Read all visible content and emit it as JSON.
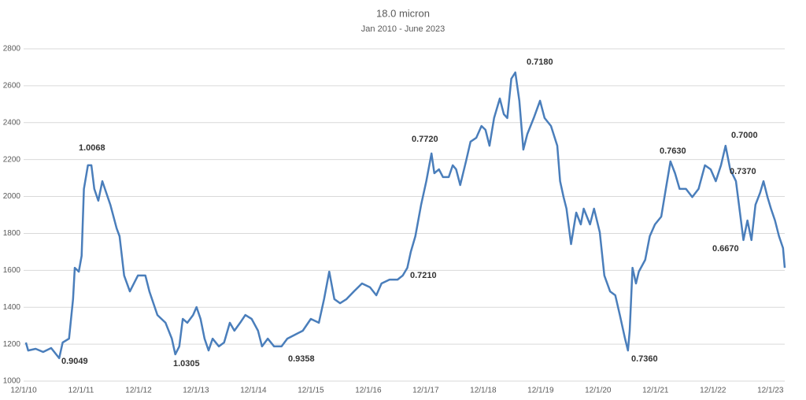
{
  "chart_data": {
    "type": "line",
    "title": "18.0 micron",
    "subtitle": "Jan 2010 - June 2023",
    "xlim": [
      0,
      13.25
    ],
    "xticks": [
      {
        "value": 0,
        "label": "12/1/10"
      },
      {
        "value": 1,
        "label": "12/1/11"
      },
      {
        "value": 2,
        "label": "12/1/12"
      },
      {
        "value": 3,
        "label": "12/1/13"
      },
      {
        "value": 4,
        "label": "12/1/14"
      },
      {
        "value": 5,
        "label": "12/1/15"
      },
      {
        "value": 6,
        "label": "12/1/16"
      },
      {
        "value": 7,
        "label": "12/1/17"
      },
      {
        "value": 8,
        "label": "12/1/18"
      },
      {
        "value": 9,
        "label": "12/1/19"
      },
      {
        "value": 10,
        "label": "12/1/20"
      },
      {
        "value": 11,
        "label": "12/1/21"
      },
      {
        "value": 12,
        "label": "12/1/22"
      },
      {
        "value": 13,
        "label": "12/1/23"
      }
    ],
    "ylim": [
      1000,
      2800
    ],
    "yticks": [
      1000,
      1200,
      1400,
      1600,
      1800,
      2000,
      2200,
      2400,
      2600,
      2800
    ],
    "grid": true,
    "x": [
      0.04,
      0.08,
      0.21,
      0.34,
      0.48,
      0.62,
      0.68,
      0.79,
      0.86,
      0.89,
      0.96,
      1.01,
      1.05,
      1.12,
      1.18,
      1.23,
      1.3,
      1.37,
      1.44,
      1.51,
      1.62,
      1.67,
      1.75,
      1.85,
      1.99,
      2.12,
      2.19,
      2.26,
      2.33,
      2.47,
      2.58,
      2.64,
      2.71,
      2.77,
      2.85,
      2.95,
      3.01,
      3.08,
      3.15,
      3.22,
      3.29,
      3.4,
      3.49,
      3.59,
      3.67,
      3.77,
      3.86,
      3.97,
      4.08,
      4.15,
      4.25,
      4.36,
      4.49,
      4.59,
      4.73,
      4.86,
      5.0,
      5.14,
      5.23,
      5.32,
      5.41,
      5.51,
      5.62,
      5.75,
      5.89,
      6.03,
      6.14,
      6.23,
      6.37,
      6.51,
      6.6,
      6.68,
      6.74,
      6.82,
      6.92,
      7.01,
      7.1,
      7.15,
      7.23,
      7.3,
      7.4,
      7.47,
      7.53,
      7.6,
      7.7,
      7.78,
      7.88,
      7.97,
      8.04,
      8.11,
      8.19,
      8.29,
      8.36,
      8.42,
      8.49,
      8.56,
      8.63,
      8.7,
      8.77,
      8.88,
      8.99,
      9.07,
      9.18,
      9.29,
      9.34,
      9.4,
      9.45,
      9.53,
      9.62,
      9.7,
      9.75,
      9.86,
      9.93,
      10.03,
      10.11,
      10.21,
      10.3,
      10.38,
      10.47,
      10.52,
      10.55,
      10.6,
      10.66,
      10.71,
      10.82,
      10.9,
      10.99,
      11.1,
      11.18,
      11.26,
      11.34,
      11.42,
      11.53,
      11.64,
      11.75,
      11.86,
      11.96,
      12.05,
      12.14,
      12.22,
      12.3,
      12.4,
      12.47,
      12.53,
      12.6,
      12.67,
      12.74,
      12.82,
      12.88,
      12.95,
      13.01,
      13.08,
      13.15,
      13.22,
      13.25
    ],
    "series": [
      {
        "color": "#4a7ebb",
        "values": [
          1209,
          1166,
          1175,
          1158,
          1179,
          1124,
          1209,
          1230,
          1444,
          1614,
          1593,
          1678,
          2041,
          2169,
          2169,
          2041,
          1977,
          2083,
          2019,
          1955,
          1827,
          1785,
          1572,
          1486,
          1572,
          1572,
          1486,
          1422,
          1358,
          1316,
          1230,
          1145,
          1188,
          1337,
          1316,
          1358,
          1401,
          1337,
          1230,
          1166,
          1230,
          1188,
          1209,
          1316,
          1273,
          1316,
          1358,
          1337,
          1273,
          1188,
          1230,
          1188,
          1188,
          1230,
          1252,
          1273,
          1337,
          1316,
          1444,
          1593,
          1444,
          1422,
          1444,
          1486,
          1529,
          1508,
          1465,
          1529,
          1550,
          1550,
          1572,
          1614,
          1700,
          1785,
          1955,
          2083,
          2233,
          2126,
          2147,
          2105,
          2105,
          2169,
          2147,
          2062,
          2190,
          2297,
          2318,
          2382,
          2361,
          2275,
          2425,
          2531,
          2446,
          2425,
          2638,
          2672,
          2519,
          2254,
          2339,
          2425,
          2519,
          2425,
          2382,
          2275,
          2083,
          1997,
          1934,
          1742,
          1913,
          1849,
          1934,
          1849,
          1934,
          1806,
          1572,
          1486,
          1465,
          1358,
          1230,
          1166,
          1273,
          1614,
          1529,
          1593,
          1657,
          1785,
          1849,
          1891,
          2041,
          2190,
          2126,
          2041,
          2041,
          1997,
          2041,
          2169,
          2147,
          2083,
          2169,
          2275,
          2147,
          2083,
          1913,
          1764,
          1870,
          1764,
          1955,
          2019,
          2083,
          1997,
          1934,
          1870,
          1785,
          1721,
          1614
        ]
      }
    ],
    "annotations": [
      "1.0068",
      "0.9049",
      "1.0305",
      "0.9358",
      "0.7720",
      "0.7210",
      "0.7180",
      "0.7360",
      "0.7630",
      "0.7000",
      "0.7370",
      "0.6670"
    ]
  }
}
